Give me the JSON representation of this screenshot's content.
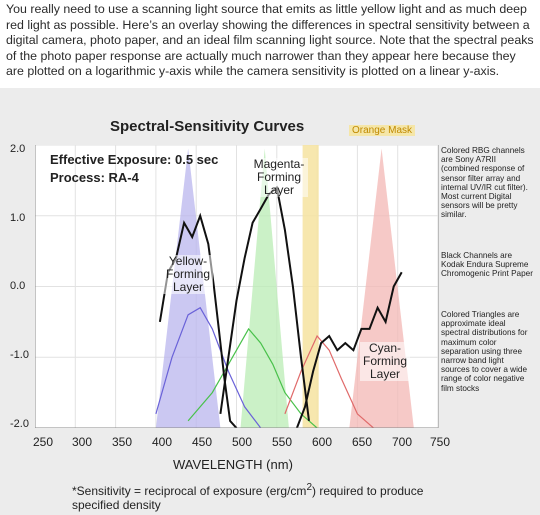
{
  "intro_text": "You really need to use a scanning light source that emits as little yellow light and as much deep red light as possible. Here’s an overlay showing the differences in spectral sensitivity between a digital camera, photo paper, and an ideal film scanning light source. Note that the spectral peaks of the photo paper response are actually much narrower than they appear here because they are plotted on a logarithmic y-axis while the camera sensitivity is plotted on a linear y-axis.",
  "chart_data": {
    "type": "line",
    "title": "Spectral-Sensitivity Curves",
    "xlabel": "WAVELENGTH (nm)",
    "xlim": [
      250,
      750
    ],
    "ylim": [
      -2.0,
      2.0
    ],
    "x_ticks": [
      "250",
      "300",
      "350",
      "400",
      "450",
      "500",
      "550",
      "600",
      "650",
      "700",
      "750"
    ],
    "y_ticks": [
      "2.0",
      "1.0",
      "0.0",
      "-1.0",
      "-2.0"
    ],
    "annotations": {
      "exposure": "Effective Exposure: 0.5 sec",
      "process": "Process: RA-4",
      "orange_mask": "Orange Mask",
      "yellow_layer": "Yellow-\nForming\nLayer",
      "magenta_layer": "Magenta-\nForming\nLayer",
      "cyan_layer": "Cyan-\nForming\nLayer"
    },
    "footnote_part1": "*Sensitivity = reciprocal of exposure (erg/cm",
    "footnote_sup": "2",
    "footnote_part2": ") required to produce specified density",
    "side_notes": {
      "colored_rgb": "Colored RBG channels are Sony A7RII (combined response of sensor filter array and internal UV/IR cut filter). Most current Digital sensors will be pretty similar.",
      "black_channels": "Black Channels are Kodak Endura Supreme Chromogenic Print Paper",
      "colored_triangles": "Colored Triangles are approximate ideal spectral distributions for maximum color separation using three narrow band light sources to cover a wide range of color negative film stocks"
    },
    "colors": {
      "blue_band": "#b9b6ee",
      "green_band": "#b9ecb4",
      "orange_mask": "#f6e3a0",
      "red_band": "#f3b7b4",
      "paper_curve": "#111111",
      "camera_blue": "#6a62d8",
      "camera_green": "#48c14a",
      "camera_red": "#e06a6a"
    },
    "series": [
      {
        "name": "Yellow-Forming Layer",
        "x": [
          405,
          415,
          425,
          435,
          445,
          455,
          465,
          472,
          478,
          485,
          492,
          500
        ],
        "y": [
          -0.5,
          0.2,
          0.4,
          0.9,
          0.7,
          1.0,
          0.6,
          0.0,
          -0.6,
          -1.3,
          -1.9,
          -2.0
        ]
      },
      {
        "name": "Magenta-Forming Layer",
        "x": [
          480,
          490,
          500,
          510,
          520,
          530,
          540,
          550,
          560,
          570,
          580,
          590
        ],
        "y": [
          -1.8,
          -1.0,
          -0.2,
          0.4,
          0.9,
          1.1,
          1.3,
          1.4,
          0.8,
          0.0,
          -1.0,
          -1.9
        ]
      },
      {
        "name": "Cyan-Forming Layer",
        "x": [
          575,
          585,
          595,
          605,
          615,
          625,
          635,
          645,
          655,
          665,
          675,
          685,
          695,
          705
        ],
        "y": [
          -2.0,
          -1.7,
          -1.2,
          -0.8,
          -0.7,
          -0.9,
          -0.8,
          -0.9,
          -0.6,
          -0.6,
          -0.3,
          -0.5,
          0.0,
          0.2
        ]
      }
    ],
    "camera_series": [
      {
        "name": "Blue",
        "x": [
          400,
          420,
          440,
          455,
          470,
          490,
          510,
          530
        ],
        "y": [
          -1.8,
          -1.0,
          -0.4,
          -0.3,
          -0.6,
          -1.2,
          -1.7,
          -2.0
        ]
      },
      {
        "name": "Green",
        "x": [
          440,
          470,
          500,
          515,
          530,
          545,
          560,
          580,
          600
        ],
        "y": [
          -1.9,
          -1.5,
          -0.9,
          -0.6,
          -0.8,
          -1.1,
          -1.5,
          -1.8,
          -2.0
        ]
      },
      {
        "name": "Red",
        "x": [
          560,
          580,
          600,
          615,
          630,
          650,
          670
        ],
        "y": [
          -1.8,
          -1.2,
          -0.7,
          -0.9,
          -1.3,
          -1.8,
          -2.0
        ]
      }
    ],
    "ideal_bands": [
      {
        "name": "Blue",
        "center": 440,
        "x_range": [
          400,
          480
        ],
        "peak": 1.95
      },
      {
        "name": "Green",
        "center": 535,
        "x_range": [
          505,
          565
        ],
        "peak": 1.95
      },
      {
        "name": "Red",
        "center": 680,
        "x_range": [
          640,
          720
        ],
        "peak": 1.95
      }
    ]
  }
}
